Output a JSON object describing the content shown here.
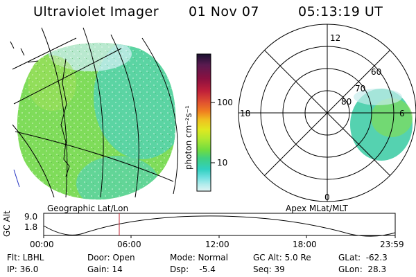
{
  "header": {
    "title": "Ultraviolet Imager",
    "date": "01 Nov 07",
    "time": "05:13:19 UT"
  },
  "colorbar": {
    "label": "photon cm⁻²s⁻¹",
    "ticks": [
      "100",
      "10"
    ],
    "colors": [
      "#1a1030",
      "#5a1a50",
      "#8b1040",
      "#c0203a",
      "#e05030",
      "#f08020",
      "#f0c020",
      "#e0e820",
      "#b0e830",
      "#70dc40",
      "#40d080",
      "#30d0c0",
      "#70e0e0",
      "#b0ecec",
      "#e0f4f4"
    ]
  },
  "geo_map": {
    "caption": "Geographic Lat/Lon",
    "fill_colors": [
      "#7fdc5a",
      "#a5e05a",
      "#55d2b0",
      "#c8ecec"
    ]
  },
  "polar_map": {
    "caption": "Apex MLat/MLT",
    "mlt_labels": {
      "top": "12",
      "left": "18",
      "right": "6",
      "bottom": "0"
    },
    "lat_labels": [
      "80",
      "70",
      "60"
    ]
  },
  "altitude_plot": {
    "ylabel": "GC Alt",
    "yticks": [
      "9.0",
      "1.8"
    ],
    "xticks": [
      "00:00",
      "06:00",
      "12:00",
      "18:00",
      "23:59"
    ],
    "marker_color": "#c02030"
  },
  "info": {
    "flt": "Flt: LBHL",
    "ip": "IP: 36.0",
    "door": "Door: Open",
    "gain": "Gain: 14",
    "mode": "Mode: Normal",
    "dsp": "Dsp:    -5.4",
    "gc_alt": "GC Alt: 5.0 Re",
    "seq": "Seq: 39",
    "glat": "GLat:  -62.3",
    "glon": "GLon:  28.3"
  }
}
